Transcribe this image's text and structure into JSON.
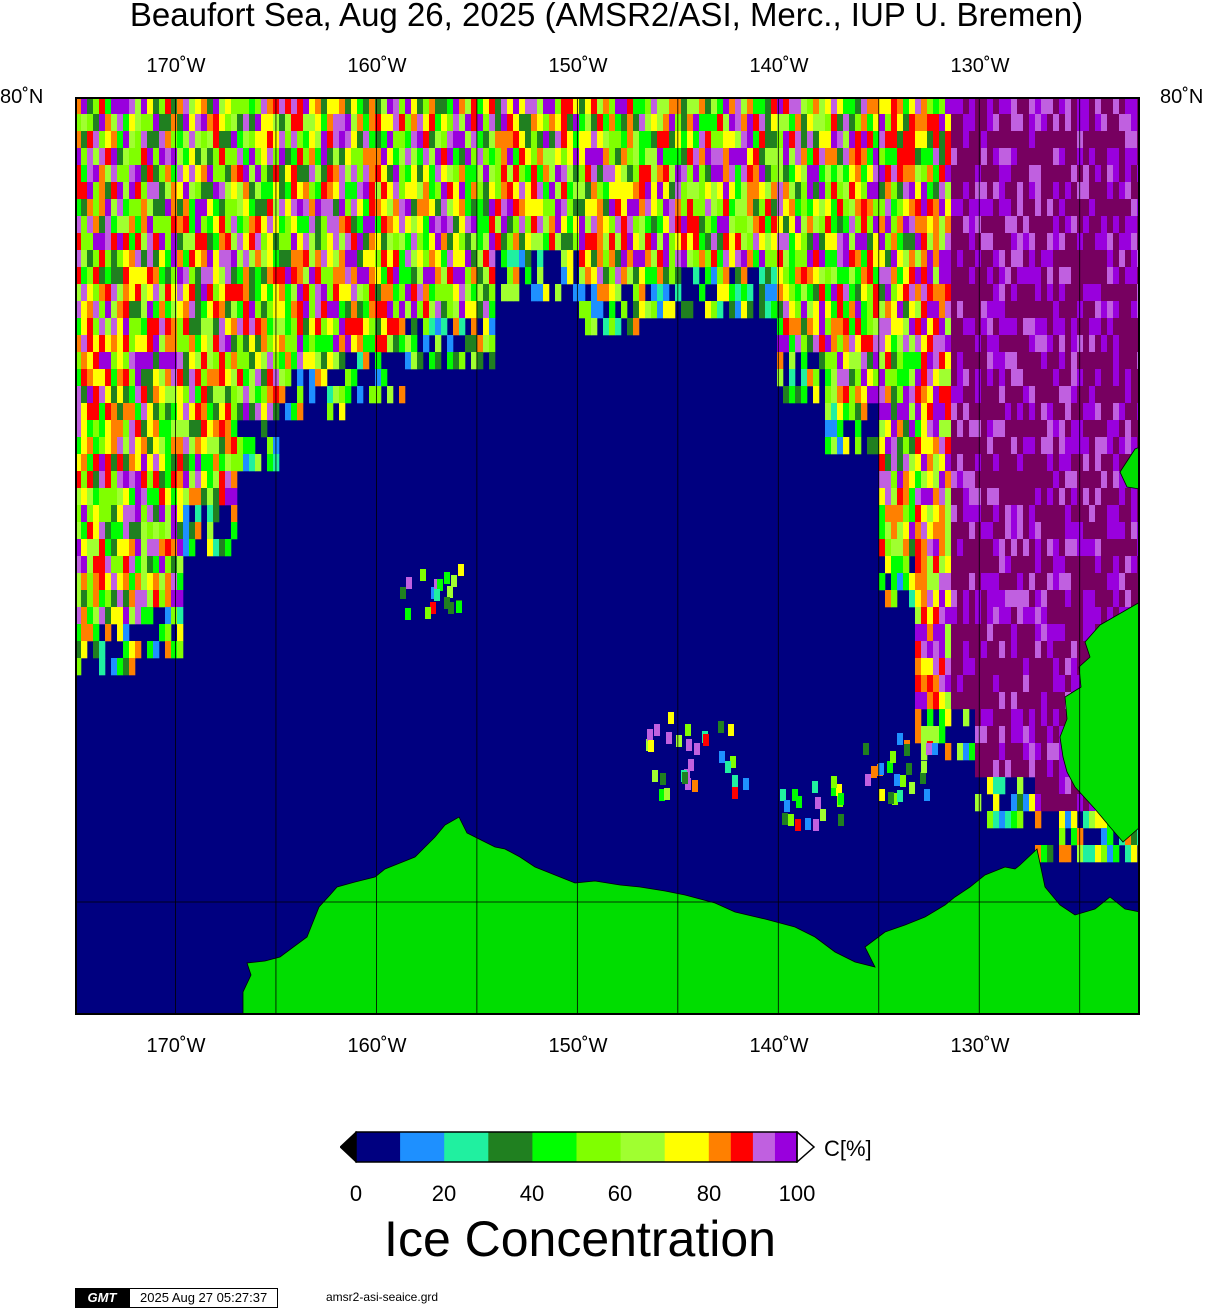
{
  "title": "Beaufort Sea, Aug 26, 2025 (AMSR2/ASI, Merc., IUP U. Bremen)",
  "map": {
    "lon_labels": [
      "170˚W",
      "160˚W",
      "150˚W",
      "140˚W",
      "130˚W"
    ],
    "lon_values": [
      -170,
      -160,
      -150,
      -140,
      -130
    ],
    "lon_range": [
      -175,
      -122
    ],
    "lat_top_label": "80˚N",
    "colors": {
      "ocean": "#000080",
      "land": "#00dd00",
      "grid": "#000000"
    }
  },
  "colorbar": {
    "tick_labels": [
      "0",
      "20",
      "40",
      "60",
      "80",
      "100"
    ],
    "unit": "C[%]",
    "title": "Ice Concentration",
    "bins": [
      {
        "from": 0,
        "to": 10,
        "color": "#000080"
      },
      {
        "from": 10,
        "to": 20,
        "color": "#1e90ff"
      },
      {
        "from": 20,
        "to": 30,
        "color": "#20f0a0"
      },
      {
        "from": 30,
        "to": 40,
        "color": "#208020"
      },
      {
        "from": 40,
        "to": 50,
        "color": "#00ff00"
      },
      {
        "from": 50,
        "to": 60,
        "color": "#80ff00"
      },
      {
        "from": 60,
        "to": 70,
        "color": "#a0ff30"
      },
      {
        "from": 70,
        "to": 80,
        "color": "#ffff00"
      },
      {
        "from": 80,
        "to": 85,
        "color": "#ff8000"
      },
      {
        "from": 85,
        "to": 90,
        "color": "#ff0000"
      },
      {
        "from": 90,
        "to": 95,
        "color": "#c060e0"
      },
      {
        "from": 95,
        "to": 100,
        "color": "#9900dd"
      }
    ],
    "over_color": "#ffffff",
    "under_color": "#000000",
    "deep_ice_color": "#770060"
  },
  "footer": {
    "logo": "GMT",
    "timestamp": "2025 Aug 27 05:27:37",
    "filename": "amsr2-asi-seaice.grd"
  }
}
